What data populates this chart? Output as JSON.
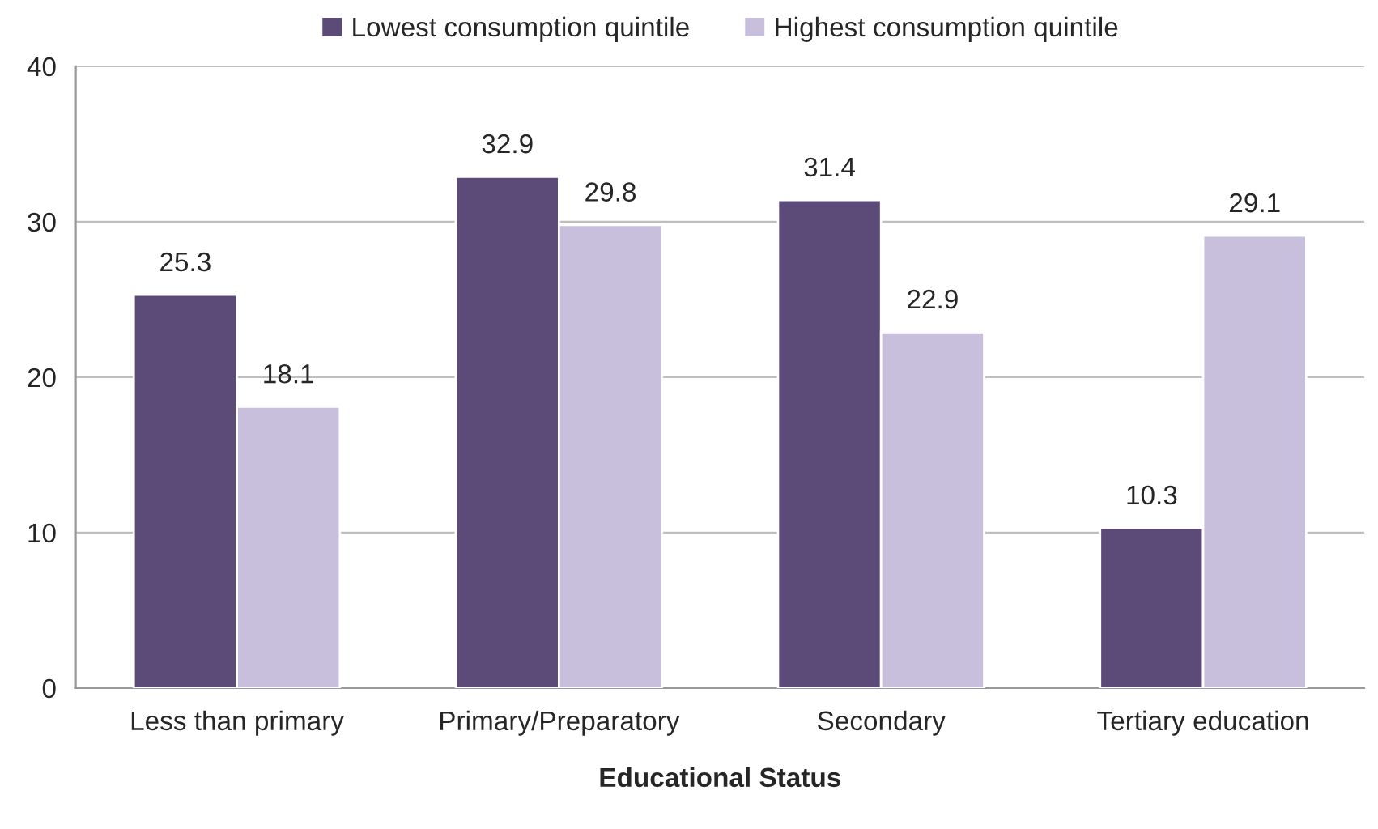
{
  "chart_data": {
    "type": "bar",
    "xlabel": "Educational Status",
    "categories": [
      "Less than primary",
      "Primary/Preparatory",
      "Secondary",
      "Tertiary education"
    ],
    "series": [
      {
        "name": "Lowest consumption quintile",
        "color": "#5c4a78",
        "values": [
          25.3,
          32.9,
          31.4,
          10.3
        ]
      },
      {
        "name": "Highest consumption quintile",
        "color": "#c8bfdc",
        "values": [
          18.1,
          29.8,
          22.9,
          29.1
        ]
      }
    ],
    "ylim": [
      0,
      40
    ],
    "yticks": [
      0,
      10,
      20,
      30,
      40
    ],
    "grid": "y",
    "legend": "top",
    "data_labels": true
  }
}
